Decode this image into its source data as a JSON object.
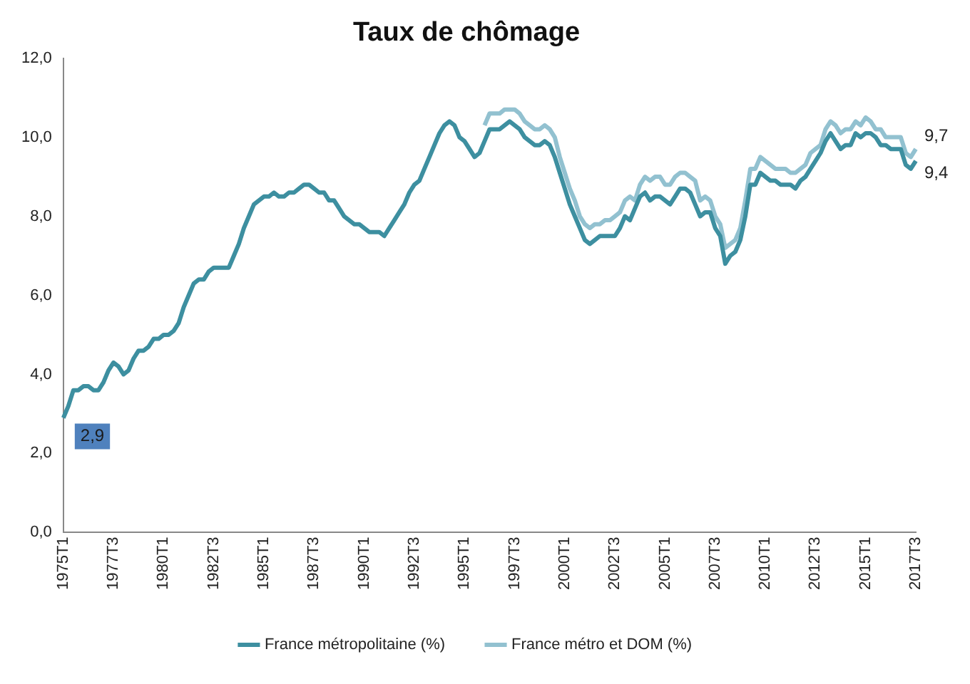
{
  "chart_data": {
    "type": "line",
    "title": "Taux de chômage",
    "categories": [
      "1975T1",
      null,
      null,
      null,
      null,
      null,
      null,
      null,
      null,
      null,
      "1977T3",
      null,
      null,
      null,
      null,
      null,
      null,
      null,
      null,
      null,
      "1980T1",
      null,
      null,
      null,
      null,
      null,
      null,
      null,
      null,
      null,
      "1982T3",
      null,
      null,
      null,
      null,
      null,
      null,
      null,
      null,
      null,
      "1985T1",
      null,
      null,
      null,
      null,
      null,
      null,
      null,
      null,
      null,
      "1987T3",
      null,
      null,
      null,
      null,
      null,
      null,
      null,
      null,
      null,
      "1990T1",
      null,
      null,
      null,
      null,
      null,
      null,
      null,
      null,
      null,
      "1992T3",
      null,
      null,
      null,
      null,
      null,
      null,
      null,
      null,
      null,
      "1995T1",
      null,
      null,
      null,
      null,
      null,
      null,
      null,
      null,
      null,
      "1997T3",
      null,
      null,
      null,
      null,
      null,
      null,
      null,
      null,
      null,
      "2000T1",
      null,
      null,
      null,
      null,
      null,
      null,
      null,
      null,
      null,
      "2002T3",
      null,
      null,
      null,
      null,
      null,
      null,
      null,
      null,
      null,
      "2005T1",
      null,
      null,
      null,
      null,
      null,
      null,
      null,
      null,
      null,
      "2007T3",
      null,
      null,
      null,
      null,
      null,
      null,
      null,
      null,
      null,
      "2010T1",
      null,
      null,
      null,
      null,
      null,
      null,
      null,
      null,
      null,
      "2012T3",
      null,
      null,
      null,
      null,
      null,
      null,
      null,
      null,
      null,
      "2015T1",
      null,
      null,
      null,
      null,
      null,
      null,
      null,
      null,
      null,
      "2017T3"
    ],
    "series": [
      {
        "name": "France métropolitaine (%)",
        "color": "#3d8fa0",
        "values": [
          2.9,
          3.2,
          3.6,
          3.6,
          3.7,
          3.7,
          3.6,
          3.6,
          3.8,
          4.1,
          4.3,
          4.2,
          4.0,
          4.1,
          4.4,
          4.6,
          4.6,
          4.7,
          4.9,
          4.9,
          5.0,
          5.0,
          5.1,
          5.3,
          5.7,
          6.0,
          6.3,
          6.4,
          6.4,
          6.6,
          6.7,
          6.7,
          6.7,
          6.7,
          7.0,
          7.3,
          7.7,
          8.0,
          8.3,
          8.4,
          8.5,
          8.5,
          8.6,
          8.5,
          8.5,
          8.6,
          8.6,
          8.7,
          8.8,
          8.8,
          8.7,
          8.6,
          8.6,
          8.4,
          8.4,
          8.2,
          8.0,
          7.9,
          7.8,
          7.8,
          7.7,
          7.6,
          7.6,
          7.6,
          7.5,
          7.7,
          7.9,
          8.1,
          8.3,
          8.6,
          8.8,
          8.9,
          9.2,
          9.5,
          9.8,
          10.1,
          10.3,
          10.4,
          10.3,
          10.0,
          9.9,
          9.7,
          9.5,
          9.6,
          9.9,
          10.2,
          10.2,
          10.2,
          10.3,
          10.4,
          10.3,
          10.2,
          10.0,
          9.9,
          9.8,
          9.8,
          9.9,
          9.8,
          9.5,
          9.1,
          8.7,
          8.3,
          8.0,
          7.7,
          7.4,
          7.3,
          7.4,
          7.5,
          7.5,
          7.5,
          7.5,
          7.7,
          8.0,
          7.9,
          8.2,
          8.5,
          8.6,
          8.4,
          8.5,
          8.5,
          8.4,
          8.3,
          8.5,
          8.7,
          8.7,
          8.6,
          8.3,
          8.0,
          8.1,
          8.1,
          7.7,
          7.5,
          6.8,
          7.0,
          7.1,
          7.4,
          8.0,
          8.8,
          8.8,
          9.1,
          9.0,
          8.9,
          8.9,
          8.8,
          8.8,
          8.8,
          8.7,
          8.9,
          9.0,
          9.2,
          9.4,
          9.6,
          9.9,
          10.1,
          9.9,
          9.7,
          9.8,
          9.8,
          10.1,
          10.0,
          10.1,
          10.1,
          10.0,
          9.8,
          9.8,
          9.7,
          9.7,
          9.7,
          9.3,
          9.2,
          9.4
        ],
        "value_labels": [
          "2,9",
          null,
          null,
          null,
          null,
          null,
          null,
          null,
          null,
          null,
          null,
          null,
          null,
          null,
          null,
          null,
          null,
          null,
          null,
          null,
          null,
          null,
          null,
          null,
          null,
          null,
          null,
          null,
          null,
          null,
          null,
          null,
          null,
          null,
          null,
          null,
          null,
          null,
          null,
          null,
          null,
          null,
          null,
          null,
          null,
          null,
          null,
          null,
          null,
          null,
          null,
          null,
          null,
          null,
          null,
          null,
          null,
          null,
          null,
          null,
          null,
          null,
          null,
          null,
          null,
          null,
          null,
          null,
          null,
          null,
          null,
          null,
          null,
          null,
          null,
          null,
          null,
          null,
          null,
          null,
          null,
          null,
          null,
          null,
          null,
          null,
          null,
          null,
          null,
          null,
          null,
          null,
          null,
          null,
          null,
          null,
          null,
          null,
          null,
          null,
          null,
          null,
          null,
          null,
          null,
          null,
          null,
          null,
          null,
          null,
          null,
          null,
          null,
          null,
          null,
          null,
          null,
          null,
          null,
          null,
          null,
          null,
          null,
          null,
          null,
          null,
          null,
          null,
          null,
          null,
          null,
          null,
          null,
          null,
          null,
          null,
          null,
          null,
          null,
          null,
          null,
          null,
          null,
          null,
          null,
          null,
          null,
          null,
          null,
          null,
          null,
          null,
          null,
          null,
          null,
          null,
          null,
          null,
          null,
          null,
          null,
          null,
          null,
          null,
          null,
          null,
          null,
          null,
          null,
          null,
          "9,4"
        ]
      },
      {
        "name": "France métro et DOM (%)",
        "color": "#92c1d0",
        "values": [
          null,
          null,
          null,
          null,
          null,
          null,
          null,
          null,
          null,
          null,
          null,
          null,
          null,
          null,
          null,
          null,
          null,
          null,
          null,
          null,
          null,
          null,
          null,
          null,
          null,
          null,
          null,
          null,
          null,
          null,
          null,
          null,
          null,
          null,
          null,
          null,
          null,
          null,
          null,
          null,
          null,
          null,
          null,
          null,
          null,
          null,
          null,
          null,
          null,
          null,
          null,
          null,
          null,
          null,
          null,
          null,
          null,
          null,
          null,
          null,
          null,
          null,
          null,
          null,
          null,
          null,
          null,
          null,
          null,
          null,
          null,
          null,
          null,
          null,
          null,
          null,
          null,
          null,
          null,
          null,
          null,
          null,
          null,
          null,
          10.3,
          10.6,
          10.6,
          10.6,
          10.7,
          10.7,
          10.7,
          10.6,
          10.4,
          10.3,
          10.2,
          10.2,
          10.3,
          10.2,
          10.0,
          9.5,
          9.1,
          8.7,
          8.4,
          8.0,
          7.8,
          7.7,
          7.8,
          7.8,
          7.9,
          7.9,
          8.0,
          8.1,
          8.4,
          8.5,
          8.4,
          8.8,
          9.0,
          8.9,
          9.0,
          9.0,
          8.8,
          8.8,
          9.0,
          9.1,
          9.1,
          9.0,
          8.9,
          8.4,
          8.5,
          8.4,
          8.0,
          7.8,
          7.2,
          7.3,
          7.4,
          7.7,
          8.4,
          9.2,
          9.2,
          9.5,
          9.4,
          9.3,
          9.2,
          9.2,
          9.2,
          9.1,
          9.1,
          9.2,
          9.3,
          9.6,
          9.7,
          9.8,
          10.2,
          10.4,
          10.3,
          10.1,
          10.2,
          10.2,
          10.4,
          10.3,
          10.5,
          10.4,
          10.2,
          10.2,
          10.0,
          10.0,
          10.0,
          10.0,
          9.6,
          9.5,
          9.7
        ],
        "value_labels": [
          null,
          null,
          null,
          null,
          null,
          null,
          null,
          null,
          null,
          null,
          null,
          null,
          null,
          null,
          null,
          null,
          null,
          null,
          null,
          null,
          null,
          null,
          null,
          null,
          null,
          null,
          null,
          null,
          null,
          null,
          null,
          null,
          null,
          null,
          null,
          null,
          null,
          null,
          null,
          null,
          null,
          null,
          null,
          null,
          null,
          null,
          null,
          null,
          null,
          null,
          null,
          null,
          null,
          null,
          null,
          null,
          null,
          null,
          null,
          null,
          null,
          null,
          null,
          null,
          null,
          null,
          null,
          null,
          null,
          null,
          null,
          null,
          null,
          null,
          null,
          null,
          null,
          null,
          null,
          null,
          null,
          null,
          null,
          null,
          null,
          null,
          null,
          null,
          null,
          null,
          null,
          null,
          null,
          null,
          null,
          null,
          null,
          null,
          null,
          null,
          null,
          null,
          null,
          null,
          null,
          null,
          null,
          null,
          null,
          null,
          null,
          null,
          null,
          null,
          null,
          null,
          null,
          null,
          null,
          null,
          null,
          null,
          null,
          null,
          null,
          null,
          null,
          null,
          null,
          null,
          null,
          null,
          null,
          null,
          null,
          null,
          null,
          null,
          null,
          null,
          null,
          null,
          null,
          null,
          null,
          null,
          null,
          null,
          null,
          null,
          null,
          null,
          null,
          null,
          null,
          null,
          null,
          null,
          null,
          null,
          null,
          null,
          null,
          null,
          null,
          null,
          null,
          null,
          null,
          null,
          "9,7"
        ]
      }
    ],
    "ylim": [
      0,
      12
    ],
    "yticks": [
      {
        "value": 0,
        "label": "0,0"
      },
      {
        "value": 2,
        "label": "2,0"
      },
      {
        "value": 4,
        "label": "4,0"
      },
      {
        "value": 6,
        "label": "6,0"
      },
      {
        "value": 8,
        "label": "8,0"
      },
      {
        "value": 10,
        "label": "10,0"
      },
      {
        "value": 12,
        "label": "12,0"
      }
    ],
    "legend": "bottom",
    "grid": false,
    "marker": "none",
    "line_style": "solid"
  }
}
